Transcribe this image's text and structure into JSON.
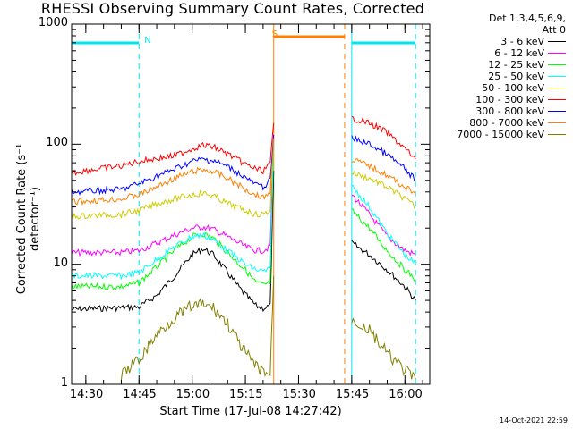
{
  "chart_data": {
    "type": "line",
    "title": "RHESSI Observing Summary Count Rates, Corrected",
    "xlabel": "Start Time (17-Jul-08 14:27:42)",
    "ylabel": "Corrected Count Rate (s⁻¹ detector⁻¹)",
    "yscale": "log",
    "ylim": [
      1,
      1000
    ],
    "xlim": [
      "14:26",
      "16:07"
    ],
    "x_ticks": [
      "14:30",
      "14:45",
      "15:00",
      "15:15",
      "15:30",
      "15:45",
      "16:00"
    ],
    "y_ticks": [
      "1",
      "10",
      "100",
      "1000"
    ],
    "legend_header": [
      "Det 1,3,4,5,6,9,",
      "Att 0"
    ],
    "legend_position": "right",
    "flags": [
      {
        "label": "N",
        "time": "14:46",
        "color": "#00e5ee"
      },
      {
        "label": "S",
        "time": "15:22",
        "color": "#ff7f00"
      }
    ],
    "night_intervals": [
      [
        "14:26",
        "14:45"
      ],
      [
        "15:45",
        "16:03"
      ]
    ],
    "saa_interval": [
      "15:23",
      "15:43"
    ],
    "series": [
      {
        "name": "3 - 6 keV",
        "color": "#000000",
        "points": [
          [
            "14:26",
            4.2
          ],
          [
            "14:45",
            4.4
          ],
          [
            "14:50",
            5.5
          ],
          [
            "14:55",
            8
          ],
          [
            "15:00",
            12
          ],
          [
            "15:03",
            13.5
          ],
          [
            "15:06",
            12
          ],
          [
            "15:10",
            8.5
          ],
          [
            "15:14",
            6
          ],
          [
            "15:18",
            4.5
          ],
          [
            "15:20",
            4.3
          ],
          [
            "15:22",
            4.5
          ],
          [
            "15:23",
            60
          ],
          [
            "15:45",
            15
          ],
          [
            "15:50",
            12
          ],
          [
            "15:55",
            9
          ],
          [
            "16:00",
            6.5
          ],
          [
            "16:03",
            5
          ]
        ]
      },
      {
        "name": "6 - 12 keV",
        "color": "#ff00ff",
        "points": [
          [
            "14:26",
            12.5
          ],
          [
            "14:40",
            12.5
          ],
          [
            "14:45",
            13
          ],
          [
            "14:50",
            15
          ],
          [
            "14:55",
            17.5
          ],
          [
            "15:00",
            20
          ],
          [
            "15:03",
            20.5
          ],
          [
            "15:06",
            19.5
          ],
          [
            "15:10",
            17
          ],
          [
            "15:15",
            14
          ],
          [
            "15:18",
            13
          ],
          [
            "15:20",
            13
          ],
          [
            "15:22",
            14
          ],
          [
            "15:23",
            110
          ],
          [
            "15:45",
            38
          ],
          [
            "15:50",
            26
          ],
          [
            "15:55",
            17
          ],
          [
            "16:00",
            13
          ],
          [
            "16:03",
            12
          ]
        ]
      },
      {
        "name": "12 - 25 keV",
        "color": "#00ff00",
        "points": [
          [
            "14:26",
            6.5
          ],
          [
            "14:40",
            6.5
          ],
          [
            "14:45",
            7
          ],
          [
            "14:50",
            9.5
          ],
          [
            "14:55",
            13
          ],
          [
            "15:00",
            17
          ],
          [
            "15:03",
            18
          ],
          [
            "15:06",
            16.5
          ],
          [
            "15:10",
            12.5
          ],
          [
            "15:15",
            9
          ],
          [
            "15:18",
            7
          ],
          [
            "15:20",
            6.7
          ],
          [
            "15:22",
            7
          ],
          [
            "15:23",
            100
          ],
          [
            "15:45",
            28
          ],
          [
            "15:50",
            20
          ],
          [
            "15:55",
            13
          ],
          [
            "16:00",
            9
          ],
          [
            "16:03",
            7.5
          ]
        ]
      },
      {
        "name": "25 - 50 keV",
        "color": "#00ffff",
        "points": [
          [
            "14:26",
            8
          ],
          [
            "14:40",
            8
          ],
          [
            "14:45",
            8.5
          ],
          [
            "14:50",
            11
          ],
          [
            "14:55",
            14
          ],
          [
            "15:00",
            17
          ],
          [
            "15:03",
            17.5
          ],
          [
            "15:06",
            16
          ],
          [
            "15:10",
            13
          ],
          [
            "15:15",
            10
          ],
          [
            "15:18",
            9
          ],
          [
            "15:20",
            8.7
          ],
          [
            "15:22",
            9
          ],
          [
            "15:23",
            100
          ],
          [
            "15:45",
            45
          ],
          [
            "15:50",
            30
          ],
          [
            "15:55",
            18
          ],
          [
            "16:00",
            12
          ],
          [
            "16:03",
            10
          ]
        ]
      },
      {
        "name": "50 - 100 keV",
        "color": "#cccc00",
        "points": [
          [
            "14:26",
            25
          ],
          [
            "14:40",
            26
          ],
          [
            "14:45",
            28
          ],
          [
            "14:50",
            32
          ],
          [
            "14:55",
            35
          ],
          [
            "15:00",
            38
          ],
          [
            "15:03",
            39
          ],
          [
            "15:06",
            37
          ],
          [
            "15:10",
            32
          ],
          [
            "15:15",
            28
          ],
          [
            "15:18",
            26
          ],
          [
            "15:20",
            26
          ],
          [
            "15:22",
            28
          ],
          [
            "15:23",
            105
          ],
          [
            "15:45",
            58
          ],
          [
            "15:50",
            52
          ],
          [
            "15:55",
            44
          ],
          [
            "16:00",
            35
          ],
          [
            "16:03",
            30
          ]
        ]
      },
      {
        "name": "100 - 300 keV",
        "color": "#ff0000",
        "points": [
          [
            "14:26",
            58
          ],
          [
            "14:40",
            66
          ],
          [
            "14:45",
            72
          ],
          [
            "14:50",
            76
          ],
          [
            "14:55",
            80
          ],
          [
            "15:00",
            92
          ],
          [
            "15:03",
            98
          ],
          [
            "15:06",
            95
          ],
          [
            "15:10",
            83
          ],
          [
            "15:15",
            68
          ],
          [
            "15:18",
            62
          ],
          [
            "15:20",
            60
          ],
          [
            "15:22",
            68
          ],
          [
            "15:23",
            150
          ],
          [
            "15:45",
            165
          ],
          [
            "15:50",
            150
          ],
          [
            "15:55",
            125
          ],
          [
            "16:00",
            92
          ],
          [
            "16:03",
            75
          ]
        ]
      },
      {
        "name": "300 - 800 keV",
        "color": "#0000ff",
        "points": [
          [
            "14:26",
            40
          ],
          [
            "14:40",
            42
          ],
          [
            "14:45",
            47
          ],
          [
            "14:50",
            54
          ],
          [
            "14:55",
            62
          ],
          [
            "15:00",
            72
          ],
          [
            "15:03",
            75
          ],
          [
            "15:06",
            73
          ],
          [
            "15:10",
            65
          ],
          [
            "15:15",
            53
          ],
          [
            "15:18",
            46
          ],
          [
            "15:20",
            44
          ],
          [
            "15:22",
            50
          ],
          [
            "15:23",
            120
          ],
          [
            "15:45",
            112
          ],
          [
            "15:50",
            100
          ],
          [
            "15:55",
            82
          ],
          [
            "16:00",
            62
          ],
          [
            "16:03",
            50
          ]
        ]
      },
      {
        "name": "800 - 7000 keV",
        "color": "#ff7f00",
        "points": [
          [
            "14:26",
            33
          ],
          [
            "14:40",
            35
          ],
          [
            "14:45",
            38
          ],
          [
            "14:50",
            44
          ],
          [
            "14:55",
            52
          ],
          [
            "15:00",
            59
          ],
          [
            "15:03",
            61
          ],
          [
            "15:06",
            59
          ],
          [
            "15:10",
            52
          ],
          [
            "15:15",
            42
          ],
          [
            "15:18",
            38
          ],
          [
            "15:20",
            36
          ],
          [
            "15:22",
            40
          ],
          [
            "15:23",
            112
          ],
          [
            "15:45",
            75
          ],
          [
            "15:50",
            66
          ],
          [
            "15:55",
            55
          ],
          [
            "16:00",
            44
          ],
          [
            "16:03",
            38
          ]
        ]
      },
      {
        "name": "7000 - 15000 keV",
        "color": "#808000",
        "points": [
          [
            "14:40",
            1.2
          ],
          [
            "14:45",
            1.6
          ],
          [
            "14:50",
            2.6
          ],
          [
            "14:55",
            3.6
          ],
          [
            "15:00",
            4.5
          ],
          [
            "15:03",
            4.6
          ],
          [
            "15:06",
            4.3
          ],
          [
            "15:10",
            3.2
          ],
          [
            "15:14",
            2
          ],
          [
            "15:18",
            1.4
          ],
          [
            "15:22",
            1.2
          ],
          [
            "15:23",
            8
          ],
          [
            "15:45",
            3.5
          ],
          [
            "15:50",
            2.8
          ],
          [
            "15:55",
            1.8
          ],
          [
            "16:00",
            1.3
          ],
          [
            "16:03",
            1.1
          ]
        ]
      }
    ]
  },
  "timestamp": "14-Oct-2021 22:59"
}
